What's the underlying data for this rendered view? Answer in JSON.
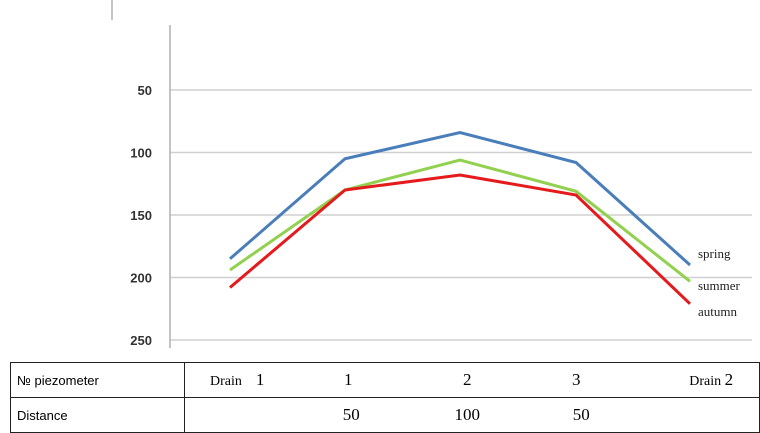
{
  "chart_data": {
    "type": "line",
    "title": "",
    "xlabel": "",
    "ylabel": "",
    "ylim": [
      0,
      250
    ],
    "y_inverted": true,
    "yticks": [
      50,
      100,
      150,
      200,
      250
    ],
    "grid": "horizontal",
    "categories": [
      "Drain 1",
      "1",
      "2",
      "3",
      "Drain 2"
    ],
    "series": [
      {
        "name": "spring",
        "color": "#4A7EBB",
        "values": [
          185,
          105,
          84,
          108,
          190
        ]
      },
      {
        "name": "summer",
        "color": "#92D050",
        "values": [
          194,
          130,
          106,
          131,
          203
        ]
      },
      {
        "name": "autumn",
        "color": "#E41A1C",
        "values": [
          208,
          130,
          118,
          134,
          221
        ]
      }
    ],
    "legend": "right, inline at line ends"
  },
  "table": {
    "row1_label": "№ piezometer",
    "row2_label": "Distance",
    "piezometers": [
      {
        "word": "Drain",
        "num": "1"
      },
      {
        "word": "",
        "num": "1"
      },
      {
        "word": "",
        "num": "2"
      },
      {
        "word": "",
        "num": "3"
      },
      {
        "word": "Drain",
        "num": "2"
      }
    ],
    "distances": [
      "50",
      "100",
      "50"
    ]
  }
}
